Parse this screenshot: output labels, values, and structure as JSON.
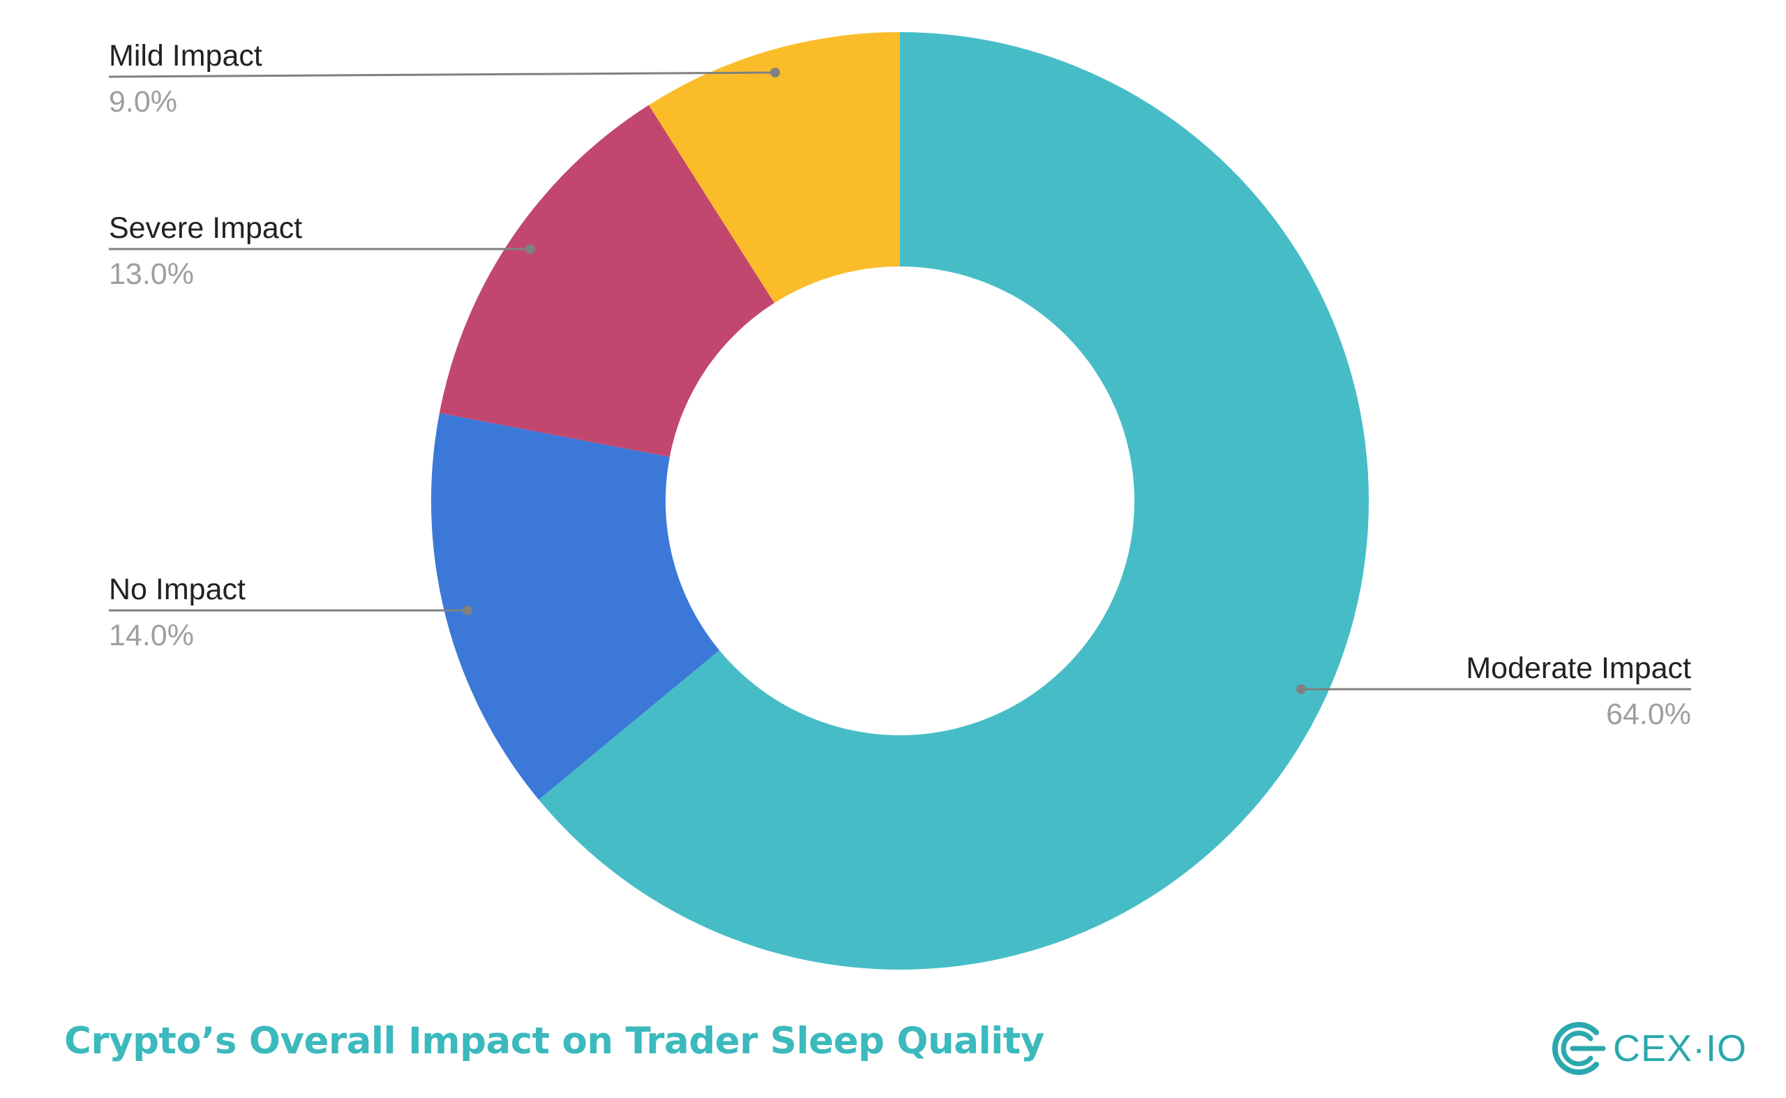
{
  "chart_data": {
    "type": "pie",
    "donut": true,
    "title": "Crypto’s Overall Impact on Trader Sleep Quality",
    "slices": [
      {
        "label": "Moderate Impact",
        "value": 64.0,
        "display": "64.0%",
        "color": "#46bdc6",
        "label_side": "right"
      },
      {
        "label": "No Impact",
        "value": 14.0,
        "display": "14.0%",
        "color": "#3c78d8",
        "label_side": "left"
      },
      {
        "label": "Severe Impact",
        "value": 13.0,
        "display": "13.0%",
        "color": "#c2476f",
        "label_side": "left"
      },
      {
        "label": "Mild Impact",
        "value": 9.0,
        "display": "9.0%",
        "color": "#fbbc2a",
        "label_side": "left"
      }
    ],
    "start": "12 o'clock",
    "direction": "clockwise",
    "leader_line_color": "#808080"
  },
  "brand": {
    "name": "CEX·IO",
    "icon": "cex-io-logo-icon",
    "color": "#2aa8ad"
  },
  "footer": {
    "title": "Crypto’s Overall Impact on Trader Sleep Quality",
    "title_color": "#3bb9bd"
  }
}
